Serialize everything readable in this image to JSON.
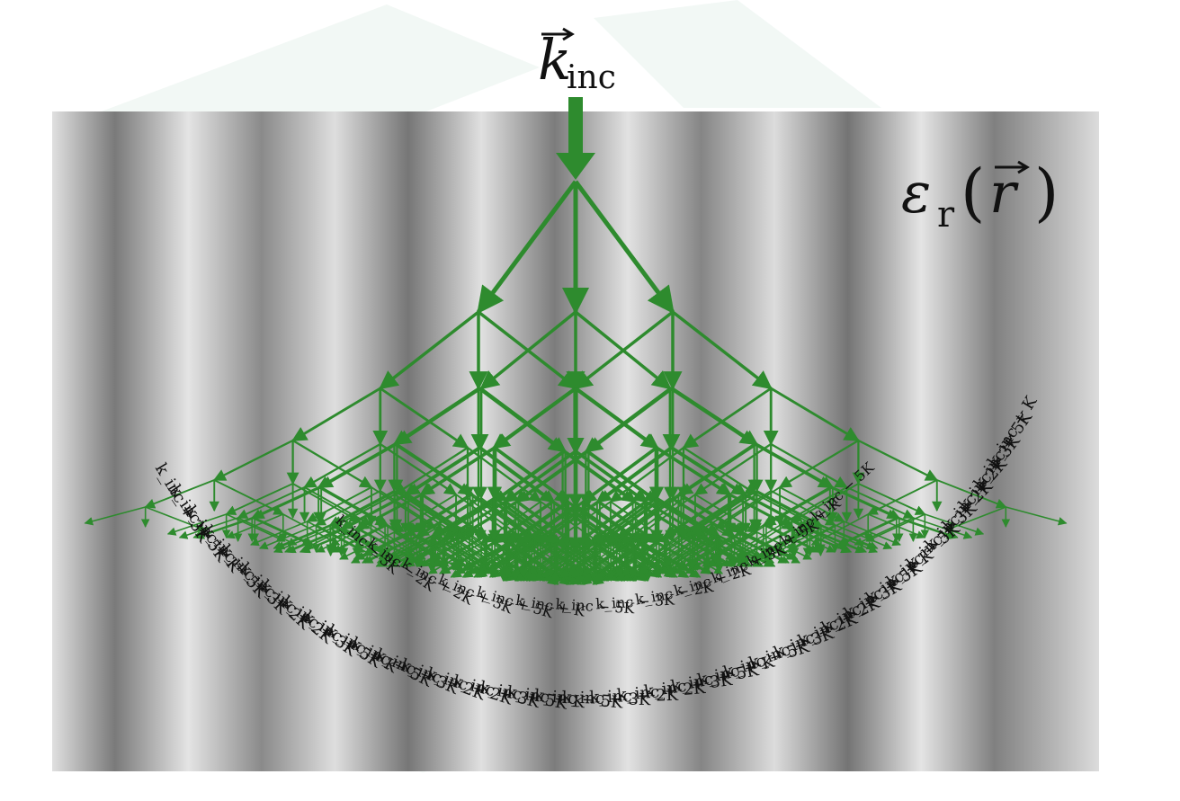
{
  "incident_label": {
    "symbol": "k",
    "subscript": "inc"
  },
  "medium_label": {
    "symbol": "ε",
    "subscript": "r",
    "argument": "r"
  },
  "order_labels": {
    "base": "k",
    "base_subscript": "inc",
    "grating_vector": "K",
    "examples": [
      "k_inc − 5K",
      "k_inc − 3K",
      "k_inc − 2K",
      "k_inc + 2K",
      "k_inc + 3K",
      "k_inc + 5K",
      "k_inc + K"
    ]
  },
  "colors": {
    "arrow": "#2e8b2e",
    "arrow_head": "#2a7f2a",
    "stripe_dark": "#6e6e6e",
    "stripe_light": "#e2e2e2",
    "watermark": "#eaf5ef",
    "label_ink": "#111111"
  },
  "tree": {
    "levels": 6,
    "branches_per_node": 3
  }
}
